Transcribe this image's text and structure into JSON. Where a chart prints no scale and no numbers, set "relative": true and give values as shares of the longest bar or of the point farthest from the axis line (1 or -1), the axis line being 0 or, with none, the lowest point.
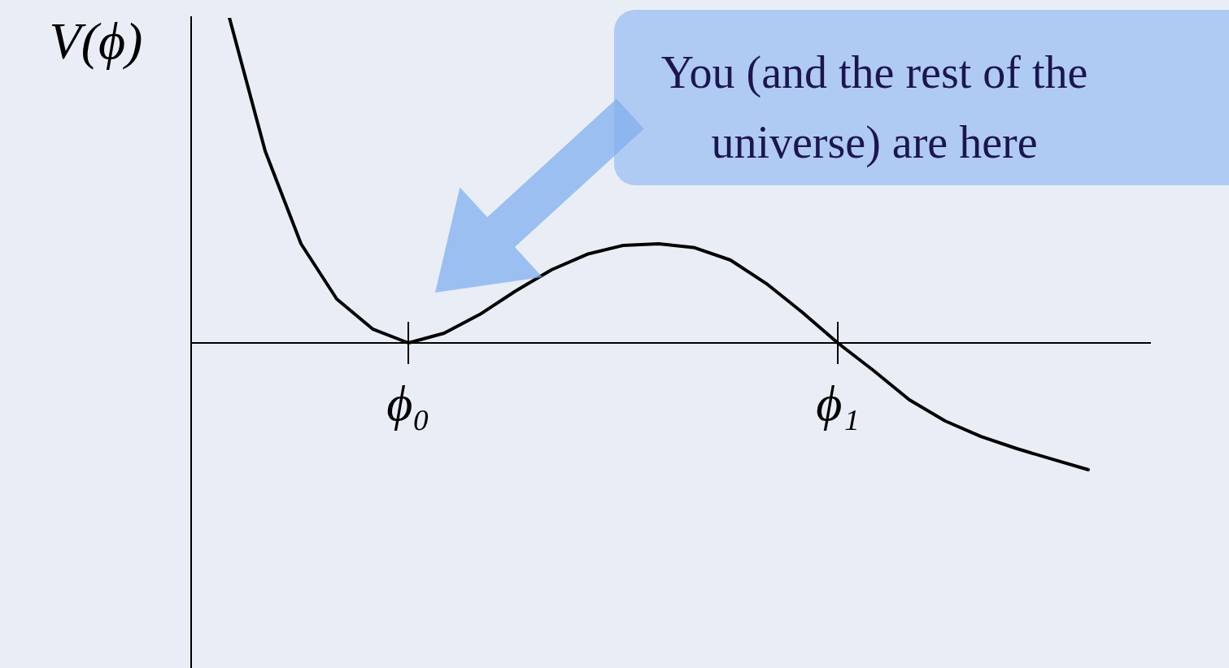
{
  "chart_data": {
    "type": "line",
    "relative": true,
    "ylabel": "V(ϕ)",
    "marker": "none",
    "categories": [
      null,
      null,
      null,
      null,
      null,
      "ϕ₀",
      null,
      null,
      null,
      null,
      null,
      null,
      null,
      null,
      null,
      null,
      null,
      "ϕ₁",
      null,
      null,
      null,
      null,
      null,
      null,
      null
    ],
    "series": [
      {
        "color": "#000000",
        "values": [
          1.0,
          0.59,
          0.305,
          0.135,
          0.043,
          0,
          0.03,
          0.088,
          0.16,
          0.225,
          0.273,
          0.3,
          0.305,
          0.293,
          0.255,
          0.183,
          0.095,
          0,
          -0.085,
          -0.175,
          -0.24,
          -0.288,
          -0.325,
          -0.358,
          -0.39
        ]
      }
    ],
    "annotations": [
      "You (and the rest of the universe) are here"
    ]
  }
}
